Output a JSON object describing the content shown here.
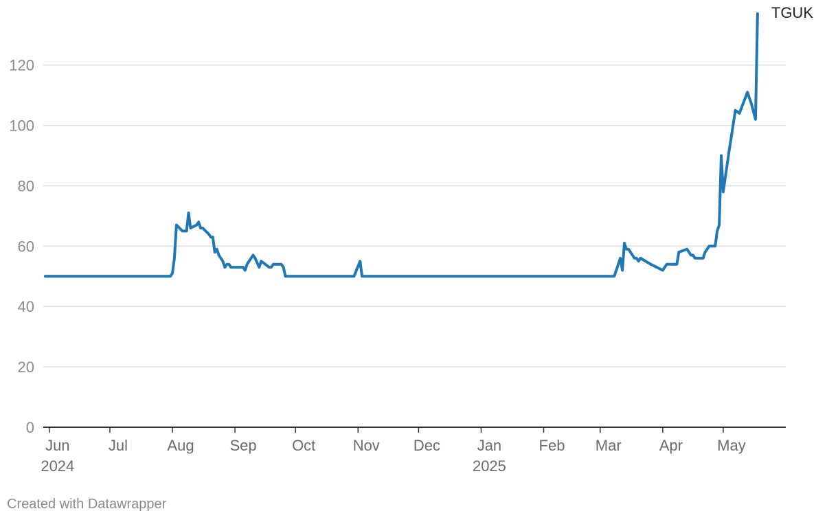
{
  "credit": "Created with Datawrapper",
  "chart_data": {
    "type": "line",
    "title": "",
    "xlabel": "",
    "ylabel": "",
    "ylim": [
      0,
      137
    ],
    "yticks": [
      0,
      20,
      40,
      60,
      80,
      100,
      120
    ],
    "xlim": [
      "2024-05-29",
      "2025-06-01"
    ],
    "xticks": [
      {
        "date": "2024-06-01",
        "label": "Jun",
        "year": "2024"
      },
      {
        "date": "2024-07-01",
        "label": "Jul",
        "year": ""
      },
      {
        "date": "2024-08-01",
        "label": "Aug",
        "year": ""
      },
      {
        "date": "2024-09-01",
        "label": "Sep",
        "year": ""
      },
      {
        "date": "2024-10-01",
        "label": "Oct",
        "year": ""
      },
      {
        "date": "2024-11-01",
        "label": "Nov",
        "year": ""
      },
      {
        "date": "2024-12-01",
        "label": "Dec",
        "year": ""
      },
      {
        "date": "2025-01-01",
        "label": "Jan",
        "year": "2025"
      },
      {
        "date": "2025-02-01",
        "label": "Feb",
        "year": ""
      },
      {
        "date": "2025-03-01",
        "label": "Mar",
        "year": ""
      },
      {
        "date": "2025-04-01",
        "label": "Apr",
        "year": ""
      },
      {
        "date": "2025-05-01",
        "label": "May",
        "year": ""
      }
    ],
    "grid": true,
    "series": [
      {
        "name": "TGUK",
        "color": "#1f77b4",
        "points": [
          [
            "2024-05-30",
            50
          ],
          [
            "2024-07-31",
            50
          ],
          [
            "2024-08-01",
            51
          ],
          [
            "2024-08-02",
            56
          ],
          [
            "2024-08-03",
            67
          ],
          [
            "2024-08-06",
            65
          ],
          [
            "2024-08-08",
            65
          ],
          [
            "2024-08-09",
            71
          ],
          [
            "2024-08-10",
            66
          ],
          [
            "2024-08-13",
            67
          ],
          [
            "2024-08-14",
            68
          ],
          [
            "2024-08-15",
            66
          ],
          [
            "2024-08-16",
            66
          ],
          [
            "2024-08-19",
            64
          ],
          [
            "2024-08-20",
            63
          ],
          [
            "2024-08-21",
            63
          ],
          [
            "2024-08-22",
            58
          ],
          [
            "2024-08-23",
            59
          ],
          [
            "2024-08-24",
            57
          ],
          [
            "2024-08-26",
            55
          ],
          [
            "2024-08-27",
            53
          ],
          [
            "2024-08-28",
            54
          ],
          [
            "2024-08-29",
            54
          ],
          [
            "2024-08-30",
            53
          ],
          [
            "2024-09-01",
            53
          ],
          [
            "2024-09-05",
            53
          ],
          [
            "2024-09-06",
            52
          ],
          [
            "2024-09-07",
            54
          ],
          [
            "2024-09-10",
            57
          ],
          [
            "2024-09-11",
            56
          ],
          [
            "2024-09-13",
            53
          ],
          [
            "2024-09-14",
            55
          ],
          [
            "2024-09-16",
            54
          ],
          [
            "2024-09-18",
            53
          ],
          [
            "2024-09-19",
            53
          ],
          [
            "2024-09-20",
            54
          ],
          [
            "2024-09-23",
            54
          ],
          [
            "2024-09-24",
            54
          ],
          [
            "2024-09-25",
            53
          ],
          [
            "2024-09-26",
            50
          ],
          [
            "2024-10-30",
            50
          ],
          [
            "2024-11-02",
            55
          ],
          [
            "2024-11-03",
            50
          ],
          [
            "2025-03-08",
            50
          ],
          [
            "2025-03-11",
            56
          ],
          [
            "2025-03-12",
            52
          ],
          [
            "2025-03-13",
            61
          ],
          [
            "2025-03-14",
            59
          ],
          [
            "2025-03-15",
            59
          ],
          [
            "2025-03-18",
            56
          ],
          [
            "2025-03-19",
            56
          ],
          [
            "2025-03-20",
            55
          ],
          [
            "2025-03-21",
            56
          ],
          [
            "2025-03-26",
            54
          ],
          [
            "2025-04-01",
            52
          ],
          [
            "2025-04-03",
            54
          ],
          [
            "2025-04-06",
            54
          ],
          [
            "2025-04-08",
            54
          ],
          [
            "2025-04-09",
            58
          ],
          [
            "2025-04-13",
            59
          ],
          [
            "2025-04-15",
            57
          ],
          [
            "2025-04-16",
            57
          ],
          [
            "2025-04-17",
            56
          ],
          [
            "2025-04-21",
            56
          ],
          [
            "2025-04-22",
            58
          ],
          [
            "2025-04-24",
            60
          ],
          [
            "2025-04-27",
            60
          ],
          [
            "2025-04-28",
            65
          ],
          [
            "2025-04-29",
            67
          ],
          [
            "2025-04-30",
            90
          ],
          [
            "2025-05-01",
            78
          ],
          [
            "2025-05-04",
            92
          ],
          [
            "2025-05-07",
            105
          ],
          [
            "2025-05-09",
            104
          ],
          [
            "2025-05-13",
            111
          ],
          [
            "2025-05-15",
            107
          ],
          [
            "2025-05-17",
            102
          ],
          [
            "2025-05-18",
            137
          ]
        ]
      }
    ]
  }
}
